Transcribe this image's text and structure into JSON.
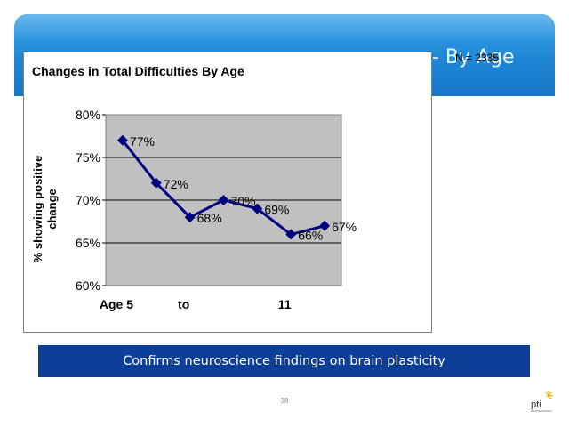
{
  "slide": {
    "title": "- By Age",
    "sample_size": "N = 2335",
    "banner": "Confirms neuroscience findings on brain plasticity",
    "page_number": "38",
    "logo_text": "pti"
  },
  "colors": {
    "header": "#1f86d6",
    "banner": "#0d3f98",
    "series": "#000080",
    "plot_bg": "#c0c0c0"
  },
  "chart_data": {
    "type": "line",
    "title": "Changes in Total Difficulties By Age",
    "ylabel": "% showing positive change",
    "xlabel": "",
    "x_tick_labels": [
      "Age 5",
      "to",
      "11"
    ],
    "ylim": [
      60,
      80
    ],
    "y_ticks": [
      60,
      65,
      70,
      75,
      80
    ],
    "y_tick_suffix": "%",
    "grid": true,
    "legend": "none",
    "series": [
      {
        "values": [
          77,
          72,
          68,
          70,
          69,
          66,
          67
        ],
        "data_labels": [
          "77%",
          "72%",
          "68%",
          "70%",
          "69%",
          "66%",
          "67%"
        ]
      }
    ]
  }
}
